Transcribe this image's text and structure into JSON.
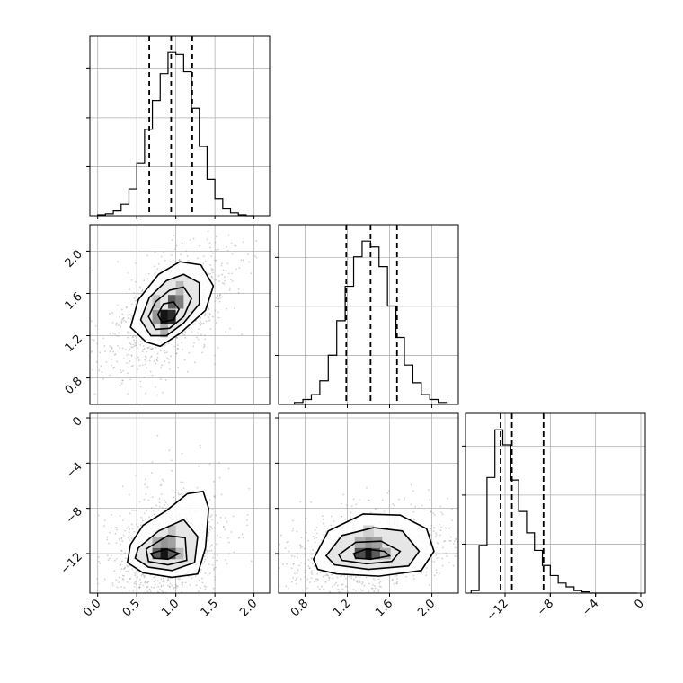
{
  "chart_data": {
    "type": "corner",
    "parameters": [
      {
        "range": [
          -0.1,
          2.2
        ],
        "ticks": [
          "0.0",
          "0.5",
          "1.0",
          "1.5",
          "2.0"
        ],
        "tick_values": [
          0.0,
          0.5,
          1.0,
          1.5,
          2.0
        ]
      },
      {
        "range": [
          0.55,
          2.25
        ],
        "ticks": [
          "0.8",
          "1.2",
          "1.6",
          "2.0"
        ],
        "tick_values": [
          0.8,
          1.2,
          1.6,
          2.0
        ]
      },
      {
        "range": [
          -15.5,
          0.4
        ],
        "ticks": [
          "−12",
          "−8",
          "−4",
          "0"
        ],
        "tick_values": [
          -12,
          -8,
          -4,
          0
        ]
      }
    ],
    "diagonal_histograms": [
      {
        "bin_start": 0.0,
        "bin_width": 0.1,
        "counts": [
          1,
          2,
          5,
          12,
          28,
          55,
          90,
          120,
          148,
          170,
          168,
          150,
          112,
          72,
          38,
          18,
          7,
          3,
          1,
          0
        ],
        "quantiles": [
          0.66,
          0.94,
          1.21
        ]
      },
      {
        "bin_start": 0.7,
        "bin_width": 0.08,
        "counts": [
          2,
          5,
          10,
          24,
          50,
          85,
          120,
          150,
          166,
          160,
          140,
          100,
          68,
          40,
          22,
          10,
          5,
          2
        ],
        "quantiles": [
          1.19,
          1.42,
          1.67
        ]
      },
      {
        "bin_start": -15.0,
        "bin_width": 0.7,
        "counts": [
          2,
          38,
          92,
          130,
          118,
          90,
          65,
          48,
          34,
          22,
          14,
          8,
          5,
          2,
          1,
          0,
          0,
          0,
          0,
          0,
          0
        ],
        "quantiles": [
          -12.4,
          -11.4,
          -8.6
        ]
      }
    ],
    "joint_panels": [
      {
        "x_param": 0,
        "y_param": 1,
        "center": [
          0.9,
          1.4
        ],
        "contour_rings": [
          [
            [
              0.62,
              1.14
            ],
            [
              0.8,
              1.1
            ],
            [
              1.05,
              1.22
            ],
            [
              1.38,
              1.44
            ],
            [
              1.48,
              1.67
            ],
            [
              1.32,
              1.87
            ],
            [
              1.05,
              1.9
            ],
            [
              0.78,
              1.78
            ],
            [
              0.52,
              1.54
            ],
            [
              0.42,
              1.28
            ]
          ],
          [
            [
              0.68,
              1.2
            ],
            [
              0.88,
              1.2
            ],
            [
              1.1,
              1.32
            ],
            [
              1.3,
              1.5
            ],
            [
              1.3,
              1.7
            ],
            [
              1.1,
              1.78
            ],
            [
              0.88,
              1.72
            ],
            [
              0.66,
              1.56
            ],
            [
              0.55,
              1.35
            ]
          ],
          [
            [
              0.74,
              1.26
            ],
            [
              0.92,
              1.27
            ],
            [
              1.1,
              1.38
            ],
            [
              1.2,
              1.55
            ],
            [
              1.1,
              1.66
            ],
            [
              0.92,
              1.63
            ],
            [
              0.74,
              1.52
            ],
            [
              0.65,
              1.38
            ]
          ],
          [
            [
              0.82,
              1.33
            ],
            [
              0.97,
              1.35
            ],
            [
              1.04,
              1.45
            ],
            [
              0.97,
              1.52
            ],
            [
              0.84,
              1.5
            ],
            [
              0.77,
              1.4
            ]
          ]
        ],
        "density_cells": [
          [
            0.85,
            1.38,
            1.0
          ],
          [
            0.95,
            1.38,
            0.9
          ],
          [
            0.95,
            1.52,
            0.7
          ],
          [
            1.05,
            1.52,
            0.55
          ],
          [
            0.75,
            1.38,
            0.45
          ],
          [
            0.85,
            1.25,
            0.35
          ],
          [
            1.05,
            1.65,
            0.3
          ],
          [
            0.75,
            1.52,
            0.25
          ]
        ]
      },
      {
        "x_param": 0,
        "y_param": 2,
        "center": [
          0.85,
          -12.0
        ],
        "contour_rings": [
          [
            [
              0.42,
              -11.2
            ],
            [
              0.58,
              -9.5
            ],
            [
              0.88,
              -8.2
            ],
            [
              1.15,
              -6.7
            ],
            [
              1.35,
              -6.5
            ],
            [
              1.42,
              -8.0
            ],
            [
              1.38,
              -11.5
            ],
            [
              1.28,
              -13.8
            ],
            [
              0.95,
              -14.1
            ],
            [
              0.58,
              -13.7
            ],
            [
              0.38,
              -12.8
            ]
          ],
          [
            [
              0.52,
              -11.5
            ],
            [
              0.78,
              -10.0
            ],
            [
              1.1,
              -9.0
            ],
            [
              1.28,
              -10.5
            ],
            [
              1.24,
              -12.8
            ],
            [
              0.95,
              -13.5
            ],
            [
              0.65,
              -13.2
            ],
            [
              0.48,
              -12.4
            ]
          ],
          [
            [
              0.62,
              -11.6
            ],
            [
              0.9,
              -10.4
            ],
            [
              1.12,
              -10.6
            ],
            [
              1.14,
              -12.6
            ],
            [
              0.9,
              -13.0
            ],
            [
              0.65,
              -12.7
            ]
          ],
          [
            [
              0.68,
              -12.0
            ],
            [
              0.88,
              -11.6
            ],
            [
              1.04,
              -12.0
            ],
            [
              0.9,
              -12.5
            ],
            [
              0.72,
              -12.4
            ]
          ]
        ],
        "density_cells": [
          [
            0.85,
            -12.0,
            1.0
          ],
          [
            0.75,
            -12.0,
            0.7
          ],
          [
            0.95,
            -12.0,
            0.7
          ],
          [
            0.85,
            -11.0,
            0.45
          ],
          [
            0.95,
            -11.0,
            0.4
          ],
          [
            0.75,
            -11.0,
            0.35
          ],
          [
            0.95,
            -10.0,
            0.25
          ],
          [
            1.05,
            -12.0,
            0.3
          ]
        ]
      },
      {
        "x_param": 1,
        "y_param": 2,
        "center": [
          1.4,
          -12.0
        ],
        "contour_rings": [
          [
            [
              0.88,
              -12.5
            ],
            [
              1.02,
              -10.0
            ],
            [
              1.35,
              -8.5
            ],
            [
              1.7,
              -8.6
            ],
            [
              1.95,
              -9.8
            ],
            [
              2.02,
              -11.8
            ],
            [
              1.9,
              -13.5
            ],
            [
              1.5,
              -14.0
            ],
            [
              1.1,
              -13.8
            ],
            [
              0.92,
              -13.4
            ]
          ],
          [
            [
              1.0,
              -12.2
            ],
            [
              1.15,
              -10.4
            ],
            [
              1.45,
              -9.7
            ],
            [
              1.72,
              -10.0
            ],
            [
              1.88,
              -11.8
            ],
            [
              1.78,
              -13.1
            ],
            [
              1.4,
              -13.4
            ],
            [
              1.08,
              -13.0
            ]
          ],
          [
            [
              1.12,
              -12.1
            ],
            [
              1.28,
              -11.0
            ],
            [
              1.52,
              -10.9
            ],
            [
              1.7,
              -11.8
            ],
            [
              1.62,
              -12.7
            ],
            [
              1.38,
              -12.9
            ],
            [
              1.15,
              -12.6
            ]
          ],
          [
            [
              1.26,
              -12.0
            ],
            [
              1.38,
              -11.6
            ],
            [
              1.55,
              -11.8
            ],
            [
              1.6,
              -12.2
            ],
            [
              1.42,
              -12.5
            ],
            [
              1.28,
              -12.4
            ]
          ]
        ],
        "density_cells": [
          [
            1.4,
            -12.0,
            1.0
          ],
          [
            1.32,
            -12.0,
            0.75
          ],
          [
            1.48,
            -12.0,
            0.7
          ],
          [
            1.4,
            -11.0,
            0.45
          ],
          [
            1.48,
            -11.0,
            0.4
          ],
          [
            1.32,
            -11.0,
            0.35
          ],
          [
            1.56,
            -12.0,
            0.35
          ],
          [
            1.4,
            -10.0,
            0.2
          ]
        ]
      }
    ],
    "grid": true,
    "xlabel": "",
    "ylabel": ""
  }
}
